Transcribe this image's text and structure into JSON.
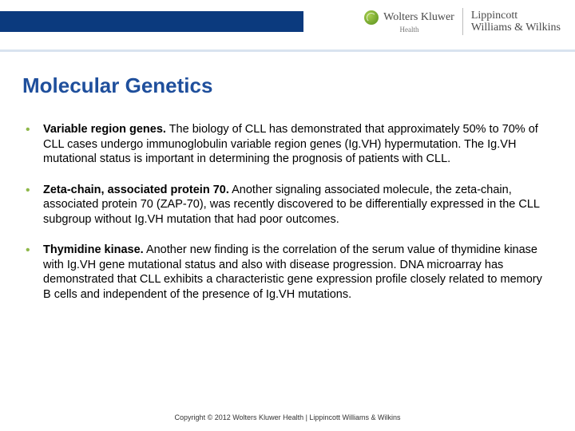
{
  "header": {
    "brand1": "Wolters Kluwer",
    "brand1_sub": "Health",
    "brand2_line1": "Lippincott",
    "brand2_line2": "Williams & Wilkins",
    "stripe_color": "#0b3a7e",
    "accent_color": "#8fb84a"
  },
  "title": "Molecular Genetics",
  "title_color": "#1f4f9c",
  "title_fontsize": 26,
  "bullets": [
    {
      "lead": "Variable region genes.",
      "body": " The biology of CLL has demonstrated that approximately 50% to 70% of CLL cases undergo immunoglobulin variable region genes (Ig.VH) hypermutation. The Ig.VH mutational status is important in determining the prognosis of patients with CLL."
    },
    {
      "lead": "Zeta-chain, associated protein 70.",
      "body": " Another signaling associated molecule, the zeta-chain, associated protein 70 (ZAP-70), was recently discovered to be differentially expressed in the CLL subgroup without Ig.VH mutation that had poor outcomes."
    },
    {
      "lead": "Thymidine kinase.",
      "body": " Another new finding is the correlation of the serum value of thymidine kinase with Ig.VH gene mutational status and also with disease progression. DNA microarray has demonstrated that CLL exhibits a characteristic gene expression profile closely related to memory B cells and independent of the presence of Ig.VH mutations."
    }
  ],
  "bullet_color": "#8fb84a",
  "body_fontsize": 14.5,
  "footer": "Copyright © 2012 Wolters Kluwer Health | Lippincott Williams & Wilkins"
}
